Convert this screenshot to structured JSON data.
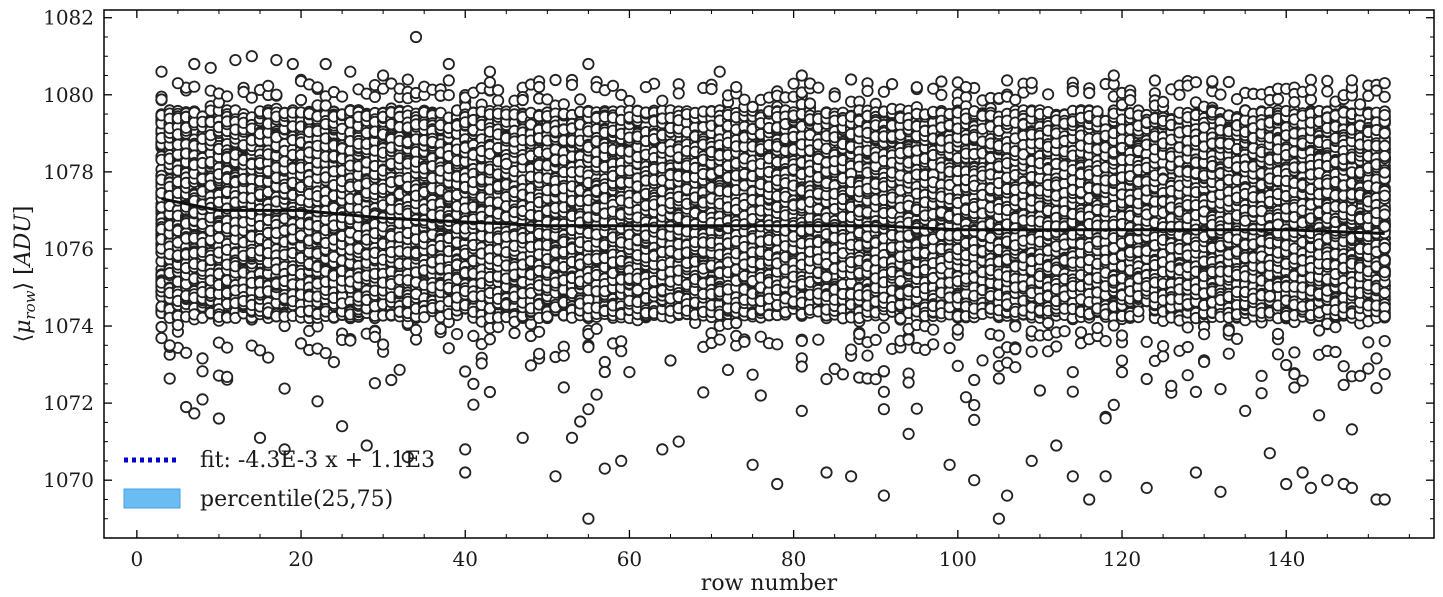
{
  "chart_data": {
    "type": "scatter",
    "xlabel": "row number",
    "ylabel_parts": {
      "open": "⟨",
      "mu": "μ",
      "sub": "row",
      "close": "⟩ [",
      "unit": "ADU",
      "end": "]"
    },
    "xlim": [
      -4,
      158
    ],
    "ylim": [
      1068.5,
      1082.2
    ],
    "x_ticks": [
      0,
      20,
      40,
      60,
      80,
      100,
      120,
      140
    ],
    "y_ticks": [
      1070,
      1072,
      1074,
      1076,
      1078,
      1080,
      1082
    ],
    "x_tick_labels": [
      "0",
      "20",
      "40",
      "60",
      "80",
      "100",
      "120",
      "140"
    ],
    "y_tick_labels": [
      "1070",
      "1072",
      "1074",
      "1076",
      "1078",
      "1080",
      "1082"
    ],
    "grid": false,
    "legend_position": "lower-left",
    "legend": [
      {
        "label": "fit: -4.3E-3 x + 1.1E3",
        "style": "dotted-line",
        "color": "#0000cc"
      },
      {
        "label": "percentile(25,75)",
        "style": "filled-patch",
        "color": "#6bbcf2",
        "edge": "#4a9fe0"
      }
    ],
    "fit": {
      "slope": -0.0043,
      "intercept": 1077.1,
      "x_range": [
        3,
        152
      ]
    },
    "median_trend": {
      "x": [
        3,
        10,
        20,
        30,
        40,
        50,
        60,
        70,
        80,
        90,
        100,
        110,
        120,
        130,
        140,
        152
      ],
      "y": [
        1077.3,
        1077.0,
        1077.0,
        1076.8,
        1076.7,
        1076.6,
        1076.6,
        1076.6,
        1076.6,
        1076.6,
        1076.5,
        1076.5,
        1076.5,
        1076.5,
        1076.5,
        1076.4
      ]
    },
    "scatter": {
      "x_range": [
        3,
        152
      ],
      "points_per_x": 100,
      "core_band": [
        1074.2,
        1079.6
      ],
      "center_start": 1077.0,
      "center_end": 1076.6,
      "outliers": [
        [
          3,
          1080.6
        ],
        [
          4,
          1073.5
        ],
        [
          5,
          1080.3
        ],
        [
          6,
          1071.9
        ],
        [
          7,
          1080.8
        ],
        [
          9,
          1080.7
        ],
        [
          10,
          1071.6
        ],
        [
          12,
          1080.9
        ],
        [
          14,
          1081.0
        ],
        [
          15,
          1071.1
        ],
        [
          17,
          1080.9
        ],
        [
          18,
          1070.8
        ],
        [
          19,
          1080.8
        ],
        [
          23,
          1080.8
        ],
        [
          25,
          1071.4
        ],
        [
          26,
          1080.6
        ],
        [
          28,
          1070.9
        ],
        [
          30,
          1080.5
        ],
        [
          33,
          1070.6
        ],
        [
          34,
          1081.5
        ],
        [
          38,
          1080.8
        ],
        [
          40,
          1070.2
        ],
        [
          40,
          1070.8
        ],
        [
          43,
          1080.6
        ],
        [
          47,
          1071.1
        ],
        [
          51,
          1070.1
        ],
        [
          53,
          1071.1
        ],
        [
          55,
          1069.0
        ],
        [
          55,
          1080.8
        ],
        [
          57,
          1070.3
        ],
        [
          59,
          1070.5
        ],
        [
          62,
          1080.2
        ],
        [
          64,
          1070.8
        ],
        [
          66,
          1071.0
        ],
        [
          71,
          1080.6
        ],
        [
          75,
          1070.4
        ],
        [
          78,
          1069.9
        ],
        [
          81,
          1080.5
        ],
        [
          84,
          1070.2
        ],
        [
          87,
          1070.1
        ],
        [
          89,
          1080.1
        ],
        [
          91,
          1069.6
        ],
        [
          94,
          1071.2
        ],
        [
          99,
          1070.4
        ],
        [
          101,
          1080.2
        ],
        [
          102,
          1070.0
        ],
        [
          105,
          1069.0
        ],
        [
          106,
          1069.6
        ],
        [
          109,
          1070.5
        ],
        [
          112,
          1070.9
        ],
        [
          114,
          1070.1
        ],
        [
          116,
          1069.5
        ],
        [
          118,
          1070.1
        ],
        [
          119,
          1080.5
        ],
        [
          123,
          1069.8
        ],
        [
          127,
          1080.0
        ],
        [
          129,
          1070.2
        ],
        [
          132,
          1069.7
        ],
        [
          138,
          1070.7
        ],
        [
          140,
          1069.9
        ],
        [
          142,
          1070.2
        ],
        [
          143,
          1069.8
        ],
        [
          145,
          1070.0
        ],
        [
          147,
          1069.9
        ],
        [
          148,
          1069.8
        ],
        [
          151,
          1069.5
        ],
        [
          152,
          1069.5
        ],
        [
          152,
          1080.3
        ]
      ]
    }
  }
}
